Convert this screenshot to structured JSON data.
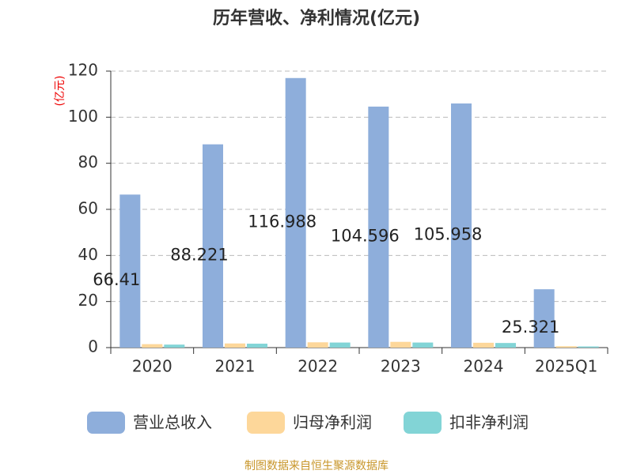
{
  "chart_data": {
    "type": "bar",
    "title": "历年营收、净利情况(亿元)",
    "y_label": "(亿元)",
    "categories": [
      "2020",
      "2021",
      "2022",
      "2023",
      "2024",
      "2025Q1"
    ],
    "series": [
      {
        "name": "营业总收入",
        "color": "#8eaedb",
        "values": [
          66.41,
          88.221,
          116.988,
          104.596,
          105.958,
          25.321
        ]
      },
      {
        "name": "归母净利润",
        "color": "#fdd79a",
        "values": [
          1.5,
          1.8,
          2.3,
          2.5,
          2.1,
          0.6
        ]
      },
      {
        "name": "扣非净利润",
        "color": "#82d4d6",
        "values": [
          1.3,
          1.7,
          2.2,
          2.2,
          2.0,
          0.5
        ]
      }
    ],
    "ylim": [
      0,
      120
    ],
    "yticks": [
      0,
      20,
      40,
      60,
      80,
      100,
      120
    ],
    "grid": true,
    "source": "制图数据来自恒生聚源数据库"
  }
}
